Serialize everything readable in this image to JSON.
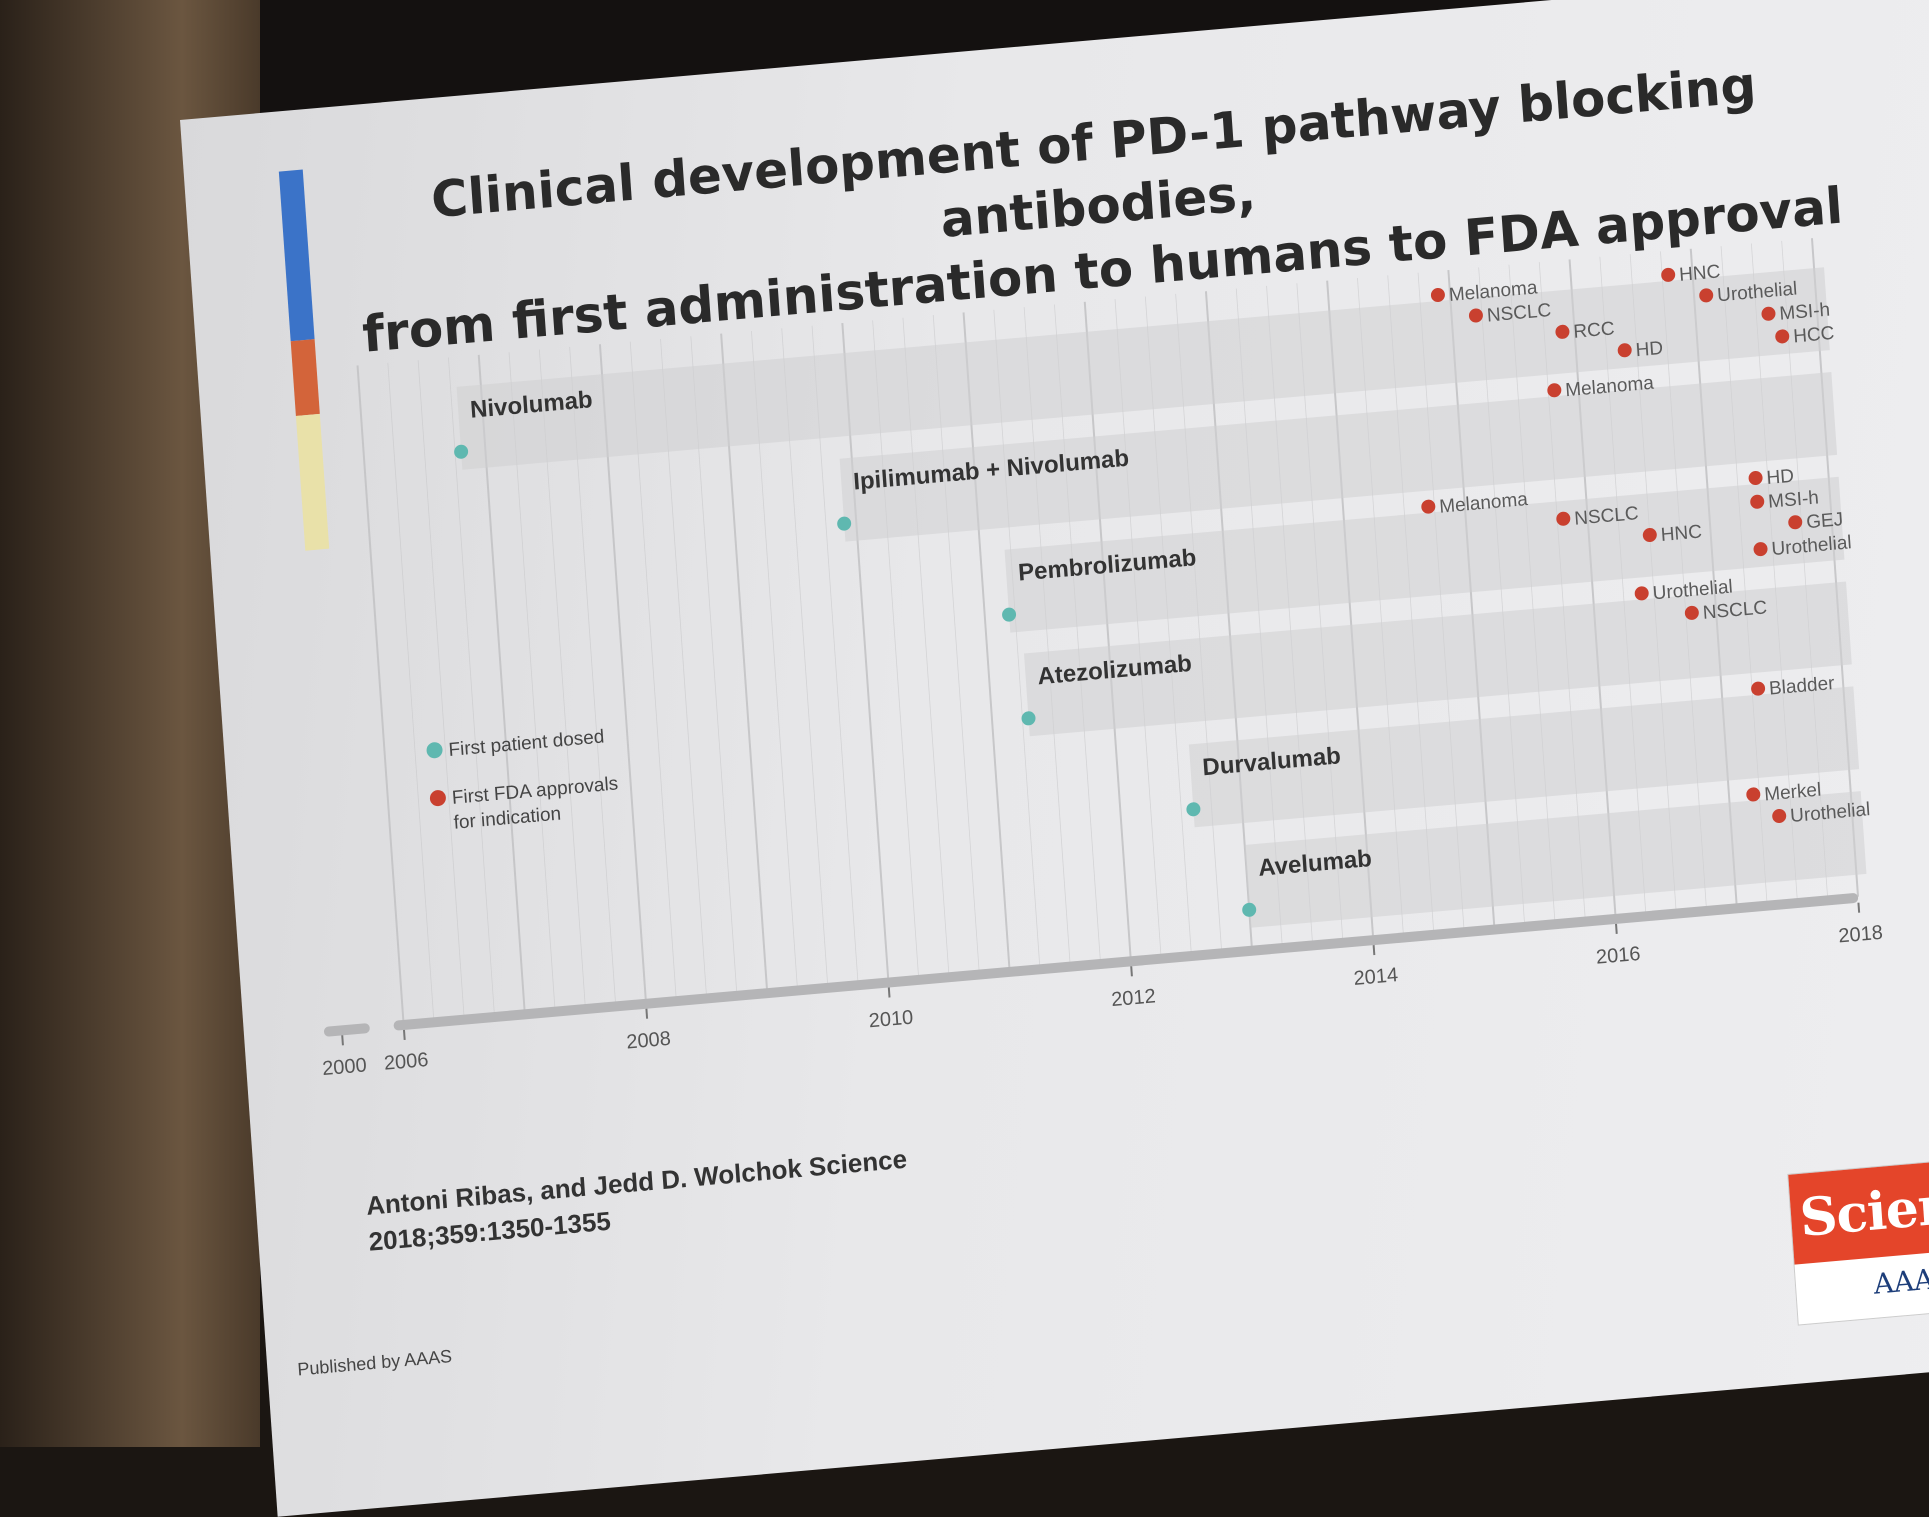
{
  "slide": {
    "title_line1": "Clinical development of PD-1 pathway blocking antibodies,",
    "title_line2": "from first administration to humans to FDA approval",
    "citation_line1": "Antoni Ribas, and Jedd D. Wolchok Science",
    "citation_line2": "2018;359:1350-1355",
    "published": "Published by AAAS",
    "logo_word": "Science",
    "logo_sub": "AAAS"
  },
  "colors": {
    "first_dose": "#5fb8b0",
    "fda_approval": "#c9402f",
    "band": "#cfcfd1",
    "grid": "#c4c4c6",
    "axis": "#b5b5b7"
  },
  "chart_data": {
    "type": "timeline",
    "title": "Clinical development of PD-1 pathway blocking antibodies, from first administration to humans to FDA approval",
    "xlabel": "",
    "ylabel": "",
    "x_ticks": [
      "2000",
      "2006",
      "2008",
      "2010",
      "2012",
      "2014",
      "2016",
      "2018"
    ],
    "xlim": [
      2006,
      2018
    ],
    "legend": {
      "position": "left-middle",
      "entries": [
        {
          "label": "First patient dosed",
          "color": "#5fb8b0"
        },
        {
          "label": "First FDA approvals",
          "label2": "for indication",
          "color": "#c9402f"
        }
      ]
    },
    "series": [
      {
        "name": "Nivolumab",
        "first_dose": 2006.8,
        "approvals": [
          {
            "label": "Melanoma",
            "x": 2014.9
          },
          {
            "label": "NSCLC",
            "x": 2015.2
          },
          {
            "label": "RCC",
            "x": 2015.9
          },
          {
            "label": "HD",
            "x": 2016.4
          },
          {
            "label": "HNC",
            "x": 2016.8
          },
          {
            "label": "Urothelial",
            "x": 2017.1
          },
          {
            "label": "MSI-h",
            "x": 2017.6
          },
          {
            "label": "HCC",
            "x": 2017.7
          }
        ]
      },
      {
        "name": "Ipilimumab + Nivolumab",
        "first_dose": 2009.9,
        "approvals": [
          {
            "label": "Melanoma",
            "x": 2015.8
          }
        ]
      },
      {
        "name": "Pembrolizumab",
        "first_dose": 2011.2,
        "approvals": [
          {
            "label": "Melanoma",
            "x": 2014.7
          },
          {
            "label": "NSCLC",
            "x": 2015.8
          },
          {
            "label": "HNC",
            "x": 2016.5
          },
          {
            "label": "Urothelial",
            "x": 2017.4
          },
          {
            "label": "HD",
            "x": 2017.4
          },
          {
            "label": "MSI-h",
            "x": 2017.4
          },
          {
            "label": "GEJ",
            "x": 2017.7
          }
        ]
      },
      {
        "name": "Atezolizumab",
        "first_dose": 2011.3,
        "approvals": [
          {
            "label": "Urothelial",
            "x": 2016.4
          },
          {
            "label": "NSCLC",
            "x": 2016.8
          }
        ]
      },
      {
        "name": "Durvalumab",
        "first_dose": 2012.6,
        "approvals": [
          {
            "label": "Bladder",
            "x": 2017.3
          }
        ]
      },
      {
        "name": "Avelumab",
        "first_dose": 2013.0,
        "approvals": [
          {
            "label": "Merkel",
            "x": 2017.2
          },
          {
            "label": "Urothelial",
            "x": 2017.4
          }
        ]
      }
    ]
  }
}
